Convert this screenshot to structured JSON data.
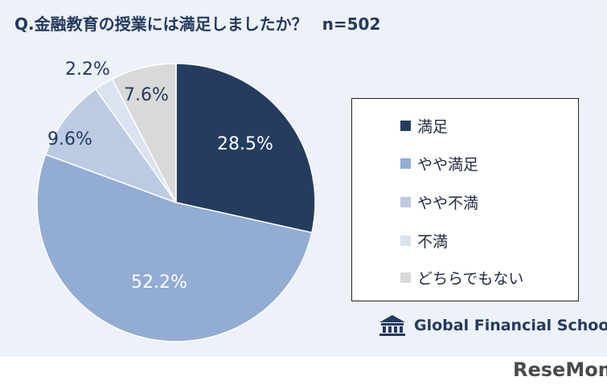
{
  "title": "Q.金融教育の授業には満足しましたか？",
  "sample_size": "n=502",
  "colors": {
    "background": "#edf1f8",
    "satisfied": "#243d5f",
    "somewhat_satisfied": "#92acd3",
    "somewhat_dissatisfied": "#bccbe3",
    "dissatisfied": "#dbe3f1",
    "neither": "#d9d9d9"
  },
  "chart_data": {
    "type": "pie",
    "title": "Q.金融教育の授業には満足しましたか？",
    "legend_position": "right",
    "slices": [
      {
        "label": "満足",
        "value": 28.5,
        "display": "28.5%",
        "color": "#243d5f",
        "label_color": "#ffffff"
      },
      {
        "label": "やや満足",
        "value": 52.2,
        "display": "52.2%",
        "color": "#92acd3",
        "label_color": "#ffffff"
      },
      {
        "label": "やや不満",
        "value": 9.6,
        "display": "9.6%",
        "color": "#bccbe3",
        "label_color": "#233a5e"
      },
      {
        "label": "不満",
        "value": 2.2,
        "display": "2.2%",
        "color": "#dbe3f1",
        "label_color": "#233a5e"
      },
      {
        "label": "どちらでもない",
        "value": 7.6,
        "display": "7.6%",
        "color": "#d9d9d9",
        "label_color": "#233a5e"
      }
    ]
  },
  "logo": {
    "text": "Global Financial School",
    "icon": "school-building-icon"
  },
  "watermark": "ReseMom"
}
